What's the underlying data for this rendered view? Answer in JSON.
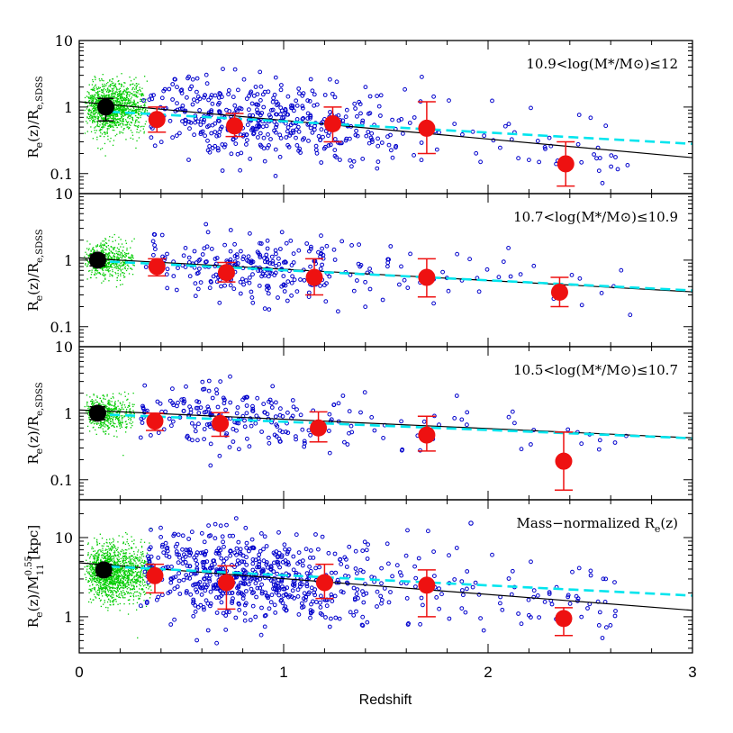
{
  "chart_data": {
    "type": "scatter",
    "x_axis": {
      "label": "Redshift",
      "range": [
        0,
        3
      ],
      "ticks": [
        0,
        1,
        2,
        3
      ],
      "tick_labels": [
        "0",
        "1",
        "2",
        "3"
      ]
    },
    "y_scale": "log",
    "fit_line_color": "#000000",
    "dashed_line_color": "#00e5ee",
    "point_color": "#0000cc",
    "local_cloud_color": "#00cc00",
    "binned_color": "#ee1111",
    "local_point_color": "#000000",
    "panels": [
      {
        "annotation": "10.9<log(M*/M⊙)≤12",
        "ylabel_main": "R",
        "ylabel_sub": "e",
        "ylabel_rest": "(z)/R",
        "ylabel_sub2": "e,SDSS",
        "ylabel_extra": "",
        "yrange": [
          0.05,
          10
        ],
        "ticks": [
          0.1,
          1,
          10
        ],
        "tick_labels": [
          "0.1",
          "1",
          "10"
        ],
        "fit": {
          "intercept": 1.2,
          "slope": -0.28
        },
        "dashed": {
          "start_z": 0.15,
          "start_y": 0.85,
          "end_y": 0.28
        },
        "local": {
          "x": 0.13,
          "y": 1.0,
          "yerr_low": 0.62,
          "yerr_high": 1.35
        },
        "binned": [
          {
            "x": 0.38,
            "y": 0.65,
            "low": 0.42,
            "high": 1.0
          },
          {
            "x": 0.76,
            "y": 0.52,
            "low": 0.36,
            "high": 0.8
          },
          {
            "x": 1.24,
            "y": 0.56,
            "low": 0.3,
            "high": 1.0
          },
          {
            "x": 1.7,
            "y": 0.48,
            "low": 0.2,
            "high": 1.2
          },
          {
            "x": 2.38,
            "y": 0.14,
            "low": 0.065,
            "high": 0.3
          }
        ],
        "scatter": {
          "count": 520,
          "center": 0.85,
          "spread": 0.33,
          "ybase": 0.5,
          "yscatter": 0.3
        },
        "cloud": {
          "count": 1500,
          "xmax": 0.28,
          "ycenter": 1.0,
          "yscatter": 0.18
        }
      },
      {
        "annotation": "10.7<log(M*/M⊙)≤10.9",
        "ylabel_main": "R",
        "ylabel_sub": "e",
        "ylabel_rest": "(z)/R",
        "ylabel_sub2": "e,SDSS",
        "ylabel_extra": "",
        "yrange": [
          0.05,
          10
        ],
        "ticks": [
          0.1,
          1,
          10
        ],
        "tick_labels": [
          "0.1",
          "1",
          "10"
        ],
        "fit": {
          "intercept": 1.08,
          "slope": -0.17
        },
        "dashed": {
          "start_z": 0.15,
          "start_y": 0.95,
          "end_y": 0.35
        },
        "local": {
          "x": 0.09,
          "y": 1.0,
          "yerr_low": 0.82,
          "yerr_high": 1.2
        },
        "binned": [
          {
            "x": 0.38,
            "y": 0.8,
            "low": 0.58,
            "high": 1.05
          },
          {
            "x": 0.72,
            "y": 0.65,
            "low": 0.47,
            "high": 0.92
          },
          {
            "x": 1.15,
            "y": 0.55,
            "low": 0.3,
            "high": 1.05
          },
          {
            "x": 1.7,
            "y": 0.55,
            "low": 0.28,
            "high": 1.05
          },
          {
            "x": 2.35,
            "y": 0.33,
            "low": 0.2,
            "high": 0.55
          }
        ],
        "scatter": {
          "count": 300,
          "center": 0.8,
          "spread": 0.32,
          "ybase": 0.7,
          "yscatter": 0.22
        },
        "cloud": {
          "count": 600,
          "xmax": 0.22,
          "ycenter": 1.0,
          "yscatter": 0.13
        }
      },
      {
        "annotation": "10.5<log(M*/M⊙)≤10.7",
        "ylabel_main": "R",
        "ylabel_sub": "e",
        "ylabel_rest": "(z)/R",
        "ylabel_sub2": "e,SDSS",
        "ylabel_extra": "",
        "yrange": [
          0.05,
          10
        ],
        "ticks": [
          0.1,
          1,
          10
        ],
        "tick_labels": [
          "0.1",
          "1",
          "10"
        ],
        "fit": {
          "intercept": 1.12,
          "slope": -0.14
        },
        "dashed": {
          "start_z": 0.15,
          "start_y": 0.95,
          "end_y": 0.42
        },
        "local": {
          "x": 0.09,
          "y": 1.0,
          "yerr_low": 0.8,
          "yerr_high": 1.25
        },
        "binned": [
          {
            "x": 0.37,
            "y": 0.76,
            "low": 0.55,
            "high": 1.0
          },
          {
            "x": 0.69,
            "y": 0.7,
            "low": 0.45,
            "high": 1.02
          },
          {
            "x": 1.17,
            "y": 0.6,
            "low": 0.37,
            "high": 1.05
          },
          {
            "x": 1.7,
            "y": 0.47,
            "low": 0.27,
            "high": 0.9
          },
          {
            "x": 2.37,
            "y": 0.19,
            "low": 0.07,
            "high": 0.52
          }
        ],
        "scatter": {
          "count": 260,
          "center": 0.75,
          "spread": 0.33,
          "ybase": 0.68,
          "yscatter": 0.22
        },
        "cloud": {
          "count": 600,
          "xmax": 0.22,
          "ycenter": 1.0,
          "yscatter": 0.13
        }
      },
      {
        "annotation": "Mass−normalized R",
        "annotation_sub": "e",
        "annotation_tail": "(z)",
        "legend_marker": true,
        "ylabel_main": "R",
        "ylabel_sub": "e",
        "ylabel_rest": "(z)/M",
        "ylabel_sub2": "11",
        "ylabel_sup": "0.55",
        "ylabel_extra": " [kpc]",
        "yrange": [
          0.35,
          30
        ],
        "ticks": [
          1,
          10
        ],
        "tick_labels": [
          "1",
          "10"
        ],
        "fit": {
          "intercept": 4.8,
          "slope": -0.2
        },
        "dashed": {
          "start_z": 0.15,
          "start_y": 4.3,
          "end_y": 1.85
        },
        "local": {
          "x": 0.12,
          "y": 3.9,
          "yerr_low": 3.3,
          "yerr_high": 4.6
        },
        "binned": [
          {
            "x": 0.37,
            "y": 3.3,
            "low": 2.0,
            "high": 4.6
          },
          {
            "x": 0.72,
            "y": 2.7,
            "low": 1.25,
            "high": 4.4
          },
          {
            "x": 1.2,
            "y": 2.7,
            "low": 1.7,
            "high": 4.6
          },
          {
            "x": 1.7,
            "y": 2.5,
            "low": 1.0,
            "high": 3.9
          },
          {
            "x": 2.37,
            "y": 0.95,
            "low": 0.58,
            "high": 1.3
          }
        ],
        "scatter": {
          "count": 760,
          "center": 0.78,
          "spread": 0.33,
          "ybase": 2.6,
          "yscatter": 0.26
        },
        "cloud": {
          "count": 1700,
          "xmax": 0.3,
          "ycenter": 3.6,
          "yscatter": 0.17
        }
      }
    ]
  }
}
